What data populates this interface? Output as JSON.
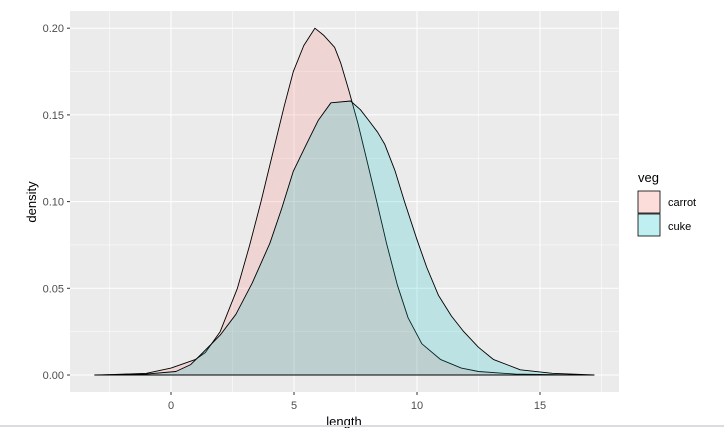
{
  "chart_data": {
    "type": "area",
    "title": "",
    "xlabel": "length",
    "ylabel": "density",
    "xlim": [
      -4,
      18
    ],
    "ylim": [
      -0.009,
      0.21
    ],
    "xticks": [
      0,
      5,
      10,
      15
    ],
    "xtick_labels": [
      "0",
      "5",
      "10",
      "15"
    ],
    "yticks": [
      0,
      0.05,
      0.1,
      0.15,
      0.2
    ],
    "ytick_labels": [
      "0.00",
      "0.05",
      "0.10",
      "0.15",
      "0.20"
    ],
    "grid": true,
    "legend": {
      "title": "veg",
      "position": "right",
      "entries": [
        "carrot",
        "cuke"
      ]
    },
    "series": [
      {
        "name": "carrot",
        "color": "#F8766D",
        "points": [
          [
            -2.8,
            0
          ],
          [
            -1,
            0.001
          ],
          [
            0,
            0.004
          ],
          [
            1,
            0.009
          ],
          [
            1.4,
            0.013
          ],
          [
            2,
            0.025
          ],
          [
            2.7,
            0.05
          ],
          [
            3.2,
            0.075
          ],
          [
            3.66,
            0.1
          ],
          [
            4.17,
            0.13
          ],
          [
            4.6,
            0.155
          ],
          [
            4.97,
            0.175
          ],
          [
            5.4,
            0.19
          ],
          [
            5.85,
            0.2
          ],
          [
            6.2,
            0.196
          ],
          [
            6.65,
            0.189
          ],
          [
            6.9,
            0.18
          ],
          [
            7.23,
            0.164
          ],
          [
            7.6,
            0.145
          ],
          [
            7.96,
            0.124
          ],
          [
            8.4,
            0.098
          ],
          [
            8.76,
            0.076
          ],
          [
            9.2,
            0.052
          ],
          [
            9.64,
            0.033
          ],
          [
            10.2,
            0.018
          ],
          [
            10.95,
            0.009
          ],
          [
            11.8,
            0.004
          ],
          [
            12.5,
            0.002
          ],
          [
            14,
            0.0005
          ],
          [
            16.3,
            0
          ]
        ]
      },
      {
        "name": "cuke",
        "color": "#00BFC4",
        "points": [
          [
            -3.1,
            0
          ],
          [
            -1,
            0.0005
          ],
          [
            0.2,
            0.002
          ],
          [
            0.8,
            0.006
          ],
          [
            1.3,
            0.013
          ],
          [
            2,
            0.023
          ],
          [
            2.64,
            0.035
          ],
          [
            3.3,
            0.053
          ],
          [
            4.02,
            0.076
          ],
          [
            4.5,
            0.096
          ],
          [
            4.97,
            0.1175
          ],
          [
            5.5,
            0.133
          ],
          [
            5.99,
            0.147
          ],
          [
            6.5,
            0.157
          ],
          [
            7.3,
            0.158
          ],
          [
            7.7,
            0.153
          ],
          [
            8.03,
            0.147
          ],
          [
            8.4,
            0.14
          ],
          [
            8.69,
            0.133
          ],
          [
            9.1,
            0.118
          ],
          [
            9.49,
            0.1
          ],
          [
            10,
            0.078
          ],
          [
            10.4,
            0.062
          ],
          [
            10.87,
            0.046
          ],
          [
            11.4,
            0.034
          ],
          [
            11.9,
            0.025
          ],
          [
            12.5,
            0.016
          ],
          [
            13.1,
            0.009
          ],
          [
            14.2,
            0.003
          ],
          [
            15.5,
            0.001
          ],
          [
            17.2,
            0
          ]
        ]
      }
    ]
  }
}
